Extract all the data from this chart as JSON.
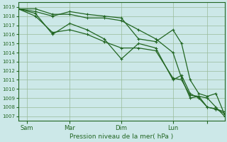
{
  "background_color": "#cce8e8",
  "grid_color": "#99bb99",
  "line_color": "#226622",
  "marker_color": "#226622",
  "xlabel": "Pression niveau de la mer( hPa )",
  "ylim": [
    1006.5,
    1019.5
  ],
  "yticks": [
    1007,
    1008,
    1009,
    1010,
    1011,
    1012,
    1013,
    1014,
    1015,
    1016,
    1017,
    1018,
    1019
  ],
  "xlim": [
    0,
    96
  ],
  "xtick_positions": [
    4,
    24,
    48,
    72,
    88
  ],
  "xtick_labels": [
    "Sam",
    "Mar",
    "Dim",
    "Lun",
    ""
  ],
  "series": [
    {
      "x": [
        0,
        8,
        16,
        24,
        32,
        40,
        48,
        56,
        64,
        72,
        76,
        80,
        84,
        88,
        92,
        96
      ],
      "y": [
        1018.8,
        1018.8,
        1018.2,
        1018.2,
        1017.8,
        1017.8,
        1017.5,
        1016.5,
        1015.5,
        1014.0,
        1011.2,
        1009.0,
        1009.2,
        1009.0,
        1008.0,
        1007.0
      ]
    },
    {
      "x": [
        0,
        8,
        16,
        24,
        32,
        40,
        48,
        56,
        64,
        72,
        76,
        80,
        84,
        88,
        92,
        96
      ],
      "y": [
        1018.8,
        1018.5,
        1018.0,
        1018.5,
        1018.2,
        1018.0,
        1017.8,
        1015.5,
        1015.2,
        1016.5,
        1015.0,
        1011.0,
        1009.5,
        1009.2,
        1009.5,
        1007.2
      ]
    },
    {
      "x": [
        0,
        8,
        16,
        24,
        32,
        40,
        48,
        56,
        64,
        72,
        76,
        80,
        84,
        88,
        92,
        96
      ],
      "y": [
        1018.8,
        1018.3,
        1016.0,
        1017.2,
        1016.5,
        1015.5,
        1013.3,
        1015.0,
        1014.5,
        1011.0,
        1011.5,
        1009.5,
        1009.0,
        1008.0,
        1007.8,
        1007.5
      ]
    },
    {
      "x": [
        0,
        8,
        16,
        24,
        32,
        40,
        48,
        56,
        64,
        72,
        76,
        80,
        84,
        88,
        92,
        96
      ],
      "y": [
        1018.8,
        1018.0,
        1016.2,
        1016.5,
        1016.0,
        1015.2,
        1014.5,
        1014.5,
        1014.2,
        1011.2,
        1011.0,
        1009.3,
        1009.2,
        1008.0,
        1007.8,
        1007.3
      ]
    }
  ]
}
